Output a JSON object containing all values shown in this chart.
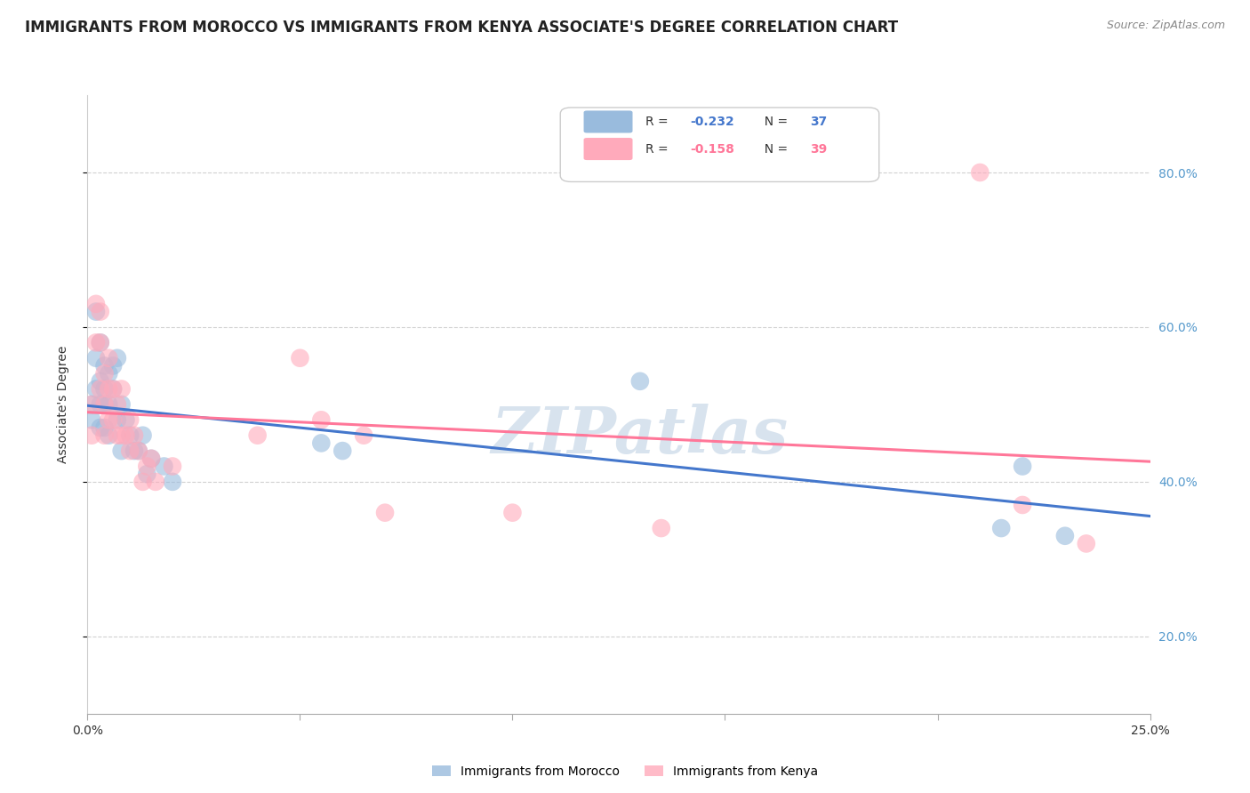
{
  "title": "IMMIGRANTS FROM MOROCCO VS IMMIGRANTS FROM KENYA ASSOCIATE'S DEGREE CORRELATION CHART",
  "source": "Source: ZipAtlas.com",
  "ylabel": "Associate's Degree",
  "ylabel_right_ticks": [
    "20.0%",
    "40.0%",
    "60.0%",
    "80.0%"
  ],
  "ylabel_right_vals": [
    0.2,
    0.4,
    0.6,
    0.8
  ],
  "xlim": [
    0.0,
    0.25
  ],
  "ylim": [
    0.1,
    0.9
  ],
  "watermark": "ZIPatlas",
  "morocco_x": [
    0.001,
    0.001,
    0.002,
    0.002,
    0.002,
    0.003,
    0.003,
    0.003,
    0.003,
    0.004,
    0.004,
    0.004,
    0.004,
    0.005,
    0.005,
    0.005,
    0.006,
    0.006,
    0.007,
    0.007,
    0.008,
    0.008,
    0.009,
    0.01,
    0.011,
    0.012,
    0.013,
    0.014,
    0.015,
    0.018,
    0.02,
    0.055,
    0.06,
    0.13,
    0.215,
    0.22,
    0.23
  ],
  "morocco_y": [
    0.48,
    0.5,
    0.62,
    0.56,
    0.52,
    0.58,
    0.53,
    0.5,
    0.47,
    0.55,
    0.52,
    0.5,
    0.47,
    0.54,
    0.5,
    0.46,
    0.55,
    0.52,
    0.56,
    0.48,
    0.5,
    0.44,
    0.48,
    0.46,
    0.44,
    0.44,
    0.46,
    0.41,
    0.43,
    0.42,
    0.4,
    0.45,
    0.44,
    0.53,
    0.34,
    0.42,
    0.33
  ],
  "kenya_x": [
    0.001,
    0.001,
    0.002,
    0.002,
    0.003,
    0.003,
    0.003,
    0.004,
    0.004,
    0.004,
    0.005,
    0.005,
    0.005,
    0.006,
    0.006,
    0.007,
    0.007,
    0.008,
    0.008,
    0.009,
    0.01,
    0.01,
    0.011,
    0.012,
    0.013,
    0.014,
    0.015,
    0.016,
    0.02,
    0.04,
    0.05,
    0.055,
    0.065,
    0.07,
    0.1,
    0.135,
    0.21,
    0.22,
    0.235
  ],
  "kenya_y": [
    0.5,
    0.46,
    0.63,
    0.58,
    0.62,
    0.58,
    0.52,
    0.54,
    0.5,
    0.46,
    0.56,
    0.52,
    0.48,
    0.52,
    0.48,
    0.5,
    0.46,
    0.52,
    0.46,
    0.46,
    0.48,
    0.44,
    0.46,
    0.44,
    0.4,
    0.42,
    0.43,
    0.4,
    0.42,
    0.46,
    0.56,
    0.48,
    0.46,
    0.36,
    0.36,
    0.34,
    0.8,
    0.37,
    0.32
  ],
  "morocco_color": "#99bbdd",
  "kenya_color": "#ffaabb",
  "morocco_line_color": "#4477cc",
  "kenya_line_color": "#ff7799",
  "background_color": "#ffffff",
  "grid_color": "#cccccc",
  "morocco_R": -0.232,
  "kenya_R": -0.158,
  "title_fontsize": 12,
  "source_fontsize": 9,
  "watermark_fontsize": 52,
  "axis_fontsize": 10,
  "ylabel_fontsize": 10,
  "legend_R_color_blue": "#4477cc",
  "legend_R_color_pink": "#ff7799",
  "legend_N_color": "#333333"
}
